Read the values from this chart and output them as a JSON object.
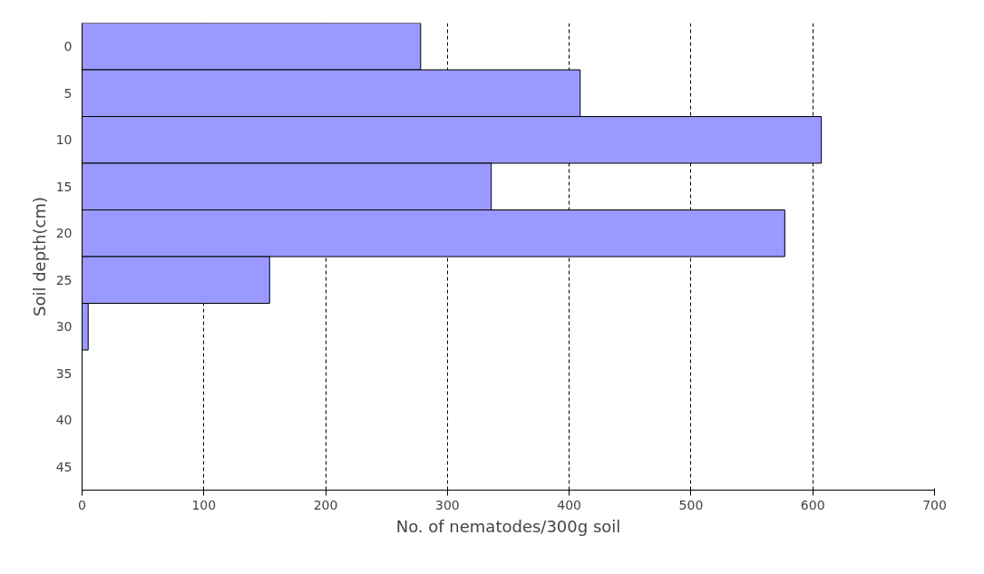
{
  "chart_data": {
    "type": "bar",
    "orientation": "horizontal",
    "xlabel": "No. of nematodes/300g soil",
    "ylabel": "Soil depth(cm)",
    "categories": [
      "0",
      "5",
      "10",
      "15",
      "20",
      "25",
      "30",
      "35",
      "40",
      "45"
    ],
    "values": [
      278,
      409,
      607,
      336,
      577,
      154,
      5,
      null,
      null,
      null
    ],
    "color": "#9999ff",
    "xlim": [
      0,
      700
    ],
    "xticks": [
      0,
      100,
      200,
      300,
      400,
      500,
      600,
      700
    ],
    "grid": "x"
  }
}
